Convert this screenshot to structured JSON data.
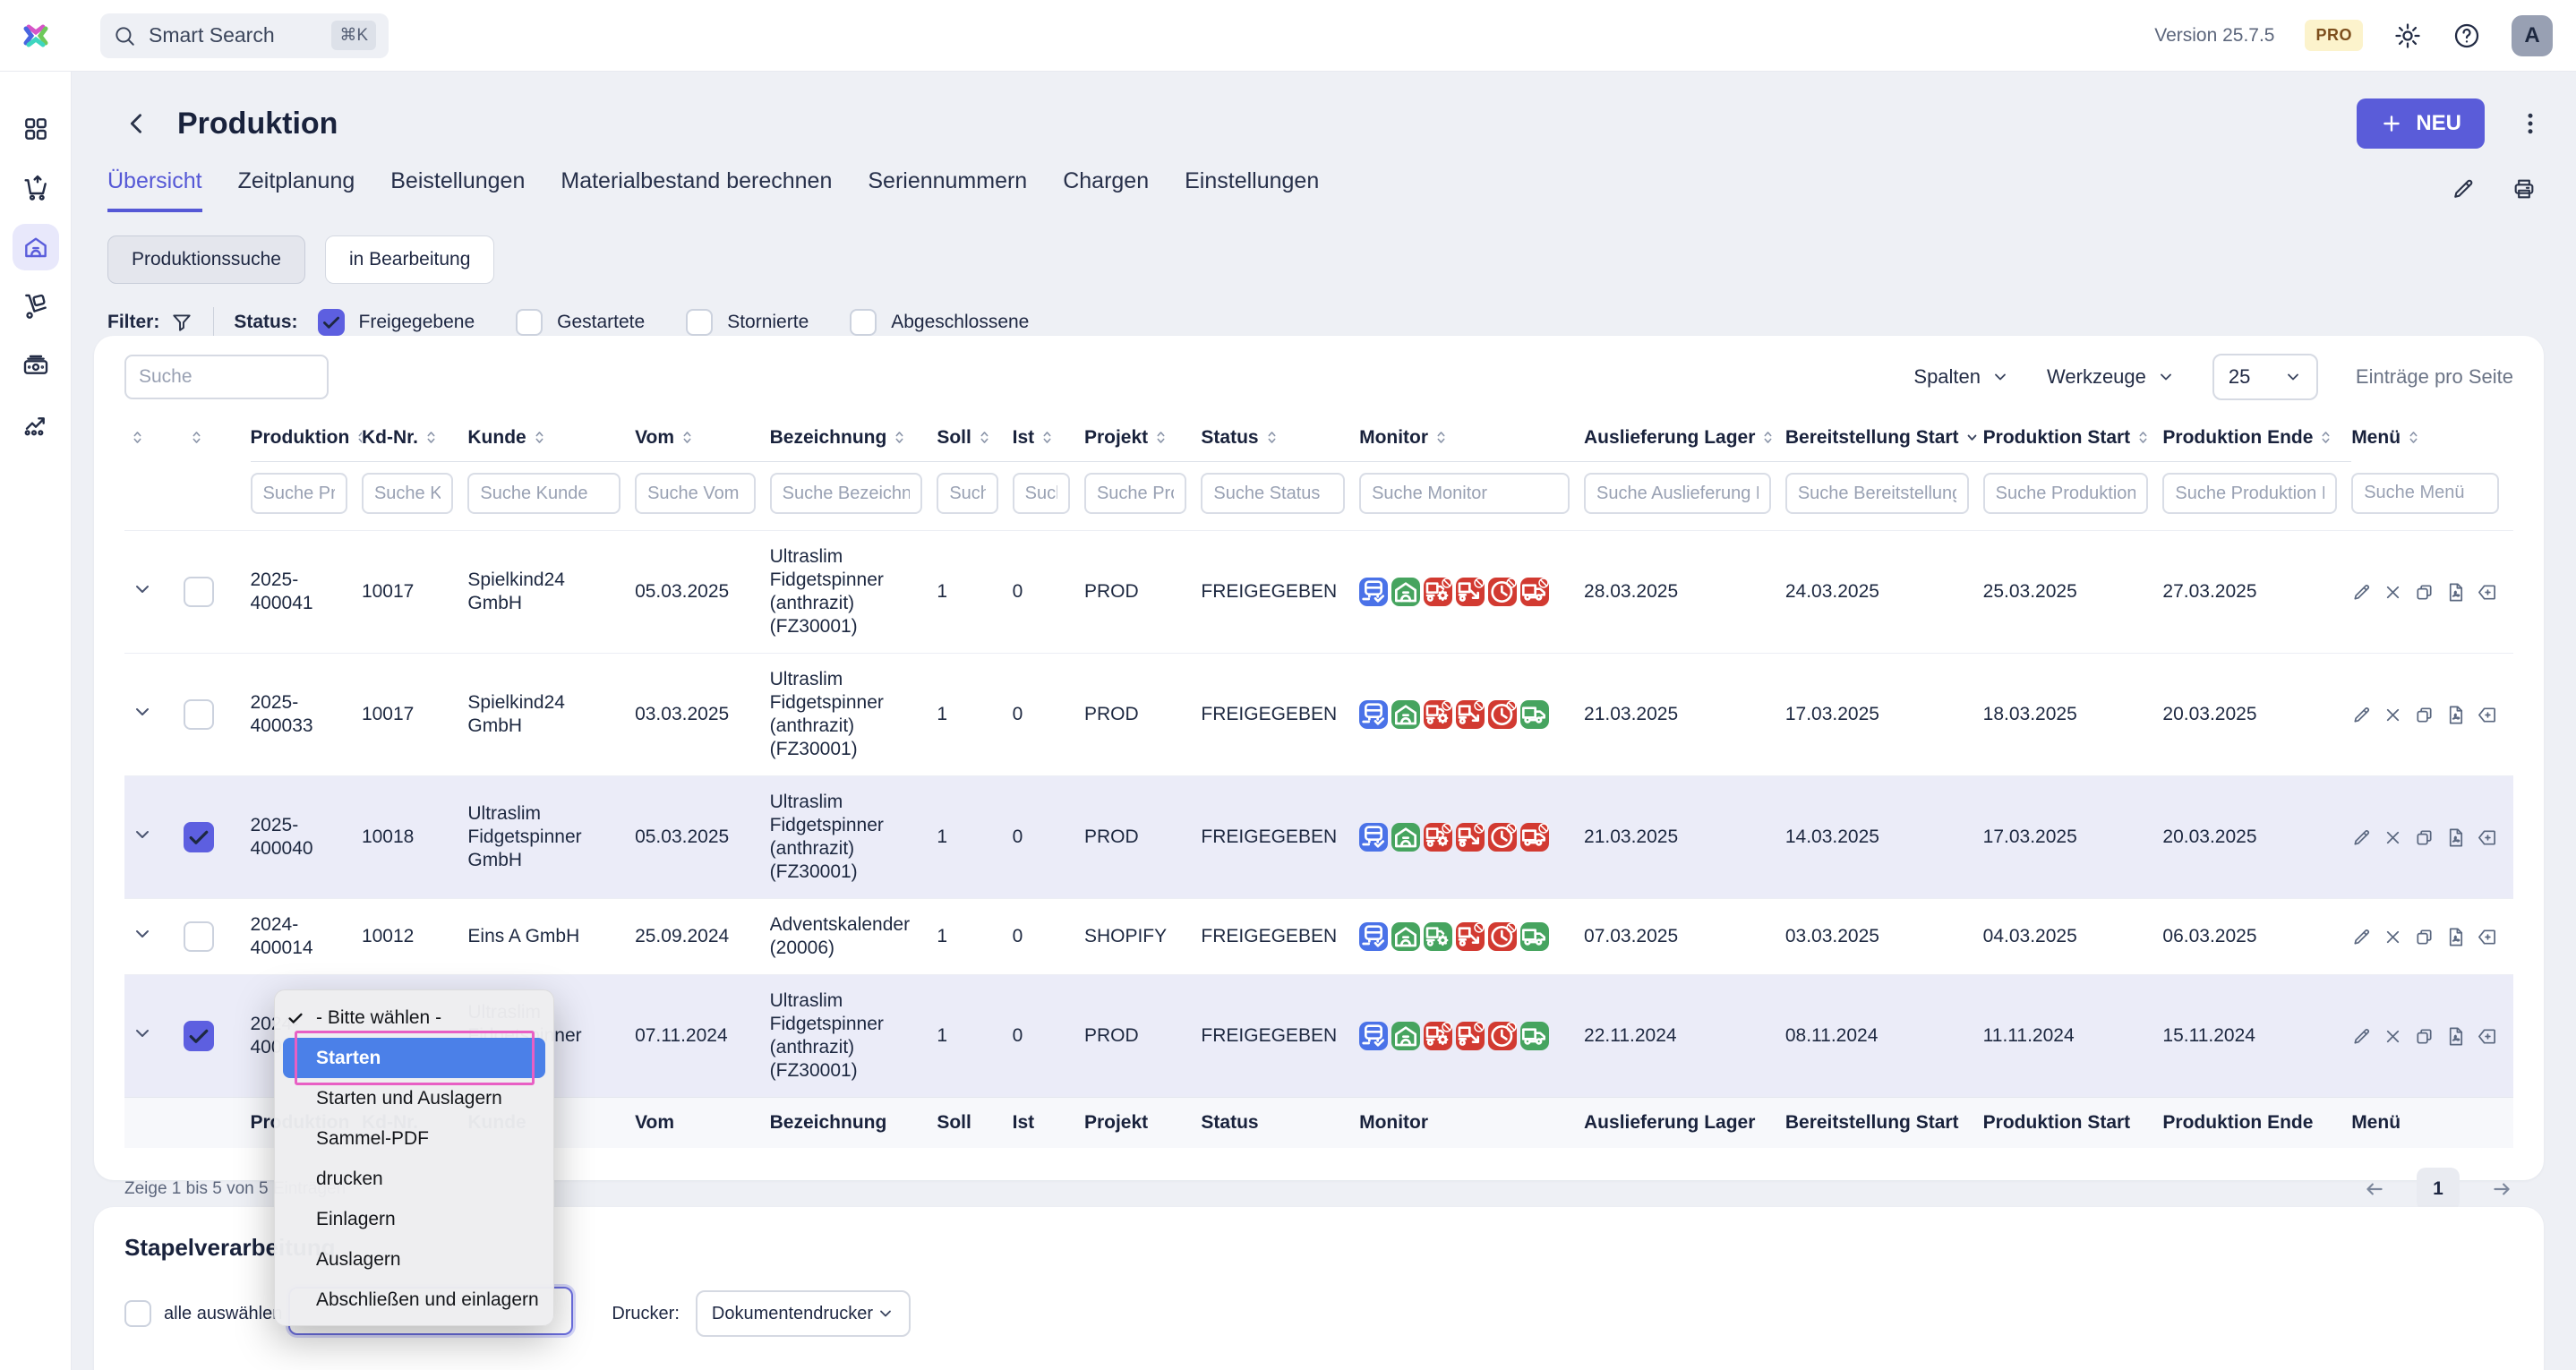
{
  "topbar": {
    "search_placeholder": "Smart Search",
    "search_shortcut": "⌘K",
    "version": "Version 25.7.5",
    "plan_badge": "PRO",
    "avatar_letter": "A"
  },
  "sidebar": {
    "items": [
      {
        "name": "dashboard",
        "icon": "dashboard",
        "active": false
      },
      {
        "name": "sales",
        "icon": "cart",
        "active": false
      },
      {
        "name": "production",
        "icon": "warehouse",
        "active": true
      },
      {
        "name": "logistics",
        "icon": "handtruck",
        "active": false
      },
      {
        "name": "finance",
        "icon": "cash",
        "active": false
      },
      {
        "name": "reports",
        "icon": "chart",
        "active": false
      }
    ]
  },
  "header": {
    "title": "Produktion",
    "new_button": "NEU"
  },
  "tabs": [
    {
      "label": "Übersicht",
      "active": true
    },
    {
      "label": "Zeitplanung",
      "active": false
    },
    {
      "label": "Beistellungen",
      "active": false
    },
    {
      "label": "Materialbestand berechnen",
      "active": false
    },
    {
      "label": "Seriennummern",
      "active": false
    },
    {
      "label": "Chargen",
      "active": false
    },
    {
      "label": "Einstellungen",
      "active": false
    }
  ],
  "view_pills": [
    {
      "label": "Produktionssuche",
      "active": true
    },
    {
      "label": "in Bearbeitung",
      "active": false
    }
  ],
  "filter": {
    "label": "Filter:",
    "status_label": "Status:",
    "options": [
      {
        "label": "Freigegebene",
        "checked": true
      },
      {
        "label": "Gestartete",
        "checked": false
      },
      {
        "label": "Stornierte",
        "checked": false
      },
      {
        "label": "Abgeschlossene",
        "checked": false
      }
    ]
  },
  "table": {
    "search_placeholder": "Suche",
    "columns_button": "Spalten",
    "tools_button": "Werkzeuge",
    "page_size": "25",
    "page_size_label": "Einträge pro Seite",
    "columns": [
      {
        "key": "expand",
        "label": "",
        "sort": "both",
        "filter": null
      },
      {
        "key": "select",
        "label": "",
        "sort": "both",
        "filter": null
      },
      {
        "key": "produktion",
        "label": "Produktion",
        "sort": "both",
        "filter": "Suche Produktion"
      },
      {
        "key": "kd_nr",
        "label": "Kd-Nr.",
        "sort": "both",
        "filter": "Suche Kd-Nr."
      },
      {
        "key": "kunde",
        "label": "Kunde",
        "sort": "both",
        "filter": "Suche Kunde"
      },
      {
        "key": "vom",
        "label": "Vom",
        "sort": "both",
        "filter": "Suche Vom"
      },
      {
        "key": "bezeichnung",
        "label": "Bezeichnung",
        "sort": "both",
        "filter": "Suche Bezeichnung"
      },
      {
        "key": "soll",
        "label": "Soll",
        "sort": "both",
        "filter": "Suche Soll"
      },
      {
        "key": "ist",
        "label": "Ist",
        "sort": "both",
        "filter": "Suche Ist"
      },
      {
        "key": "projekt",
        "label": "Projekt",
        "sort": "both",
        "filter": "Suche Projekt"
      },
      {
        "key": "status",
        "label": "Status",
        "sort": "both",
        "filter": "Suche Status"
      },
      {
        "key": "monitor",
        "label": "Monitor",
        "sort": "both",
        "filter": "Suche Monitor"
      },
      {
        "key": "auslieferung_lager",
        "label": "Auslieferung Lager",
        "sort": "both",
        "filter": "Suche Auslieferung Lager"
      },
      {
        "key": "bereitstellung_start",
        "label": "Bereitstellung Start",
        "sort": "desc",
        "filter": "Suche Bereitstellung Start"
      },
      {
        "key": "produktion_start",
        "label": "Produktion Start",
        "sort": "both",
        "filter": "Suche Produktion Start"
      },
      {
        "key": "produktion_ende",
        "label": "Produktion Ende",
        "sort": "both",
        "filter": "Suche Produktion Ende"
      },
      {
        "key": "menu",
        "label": "Menü",
        "sort": "both",
        "filter": "Suche Menü"
      }
    ],
    "row_actions": [
      "edit",
      "delete",
      "copy",
      "pdf",
      "tag-plus"
    ],
    "rows": [
      {
        "checked": false,
        "selected": false,
        "produktion": "2025-\n400041",
        "kd_nr": "10017",
        "kunde": "Spielkind24\nGmbH",
        "vom": "05.03.2025",
        "bezeichnung": "Ultraslim\nFidgetspinner\n(anthrazit)\n(FZ30001)",
        "soll": "1",
        "ist": "0",
        "projekt": "PROD",
        "status": "FREIGEGEBEN",
        "monitor": [
          [
            "truck-check",
            "blue"
          ],
          [
            "warehouse",
            "green"
          ],
          [
            "truck-gear",
            "red"
          ],
          [
            "truck-arrow",
            "red"
          ],
          [
            "clock",
            "red"
          ],
          [
            "truck",
            "red"
          ]
        ],
        "auslieferung_lager": "28.03.2025",
        "bereitstellung_start": "24.03.2025",
        "produktion_start": "25.03.2025",
        "produktion_ende": "27.03.2025"
      },
      {
        "checked": false,
        "selected": false,
        "produktion": "2025-\n400033",
        "kd_nr": "10017",
        "kunde": "Spielkind24\nGmbH",
        "vom": "03.03.2025",
        "bezeichnung": "Ultraslim\nFidgetspinner\n(anthrazit)\n(FZ30001)",
        "soll": "1",
        "ist": "0",
        "projekt": "PROD",
        "status": "FREIGEGEBEN",
        "monitor": [
          [
            "truck-check",
            "blue"
          ],
          [
            "warehouse",
            "green"
          ],
          [
            "truck-gear",
            "red"
          ],
          [
            "truck-arrow",
            "red"
          ],
          [
            "clock",
            "red"
          ],
          [
            "truck",
            "green"
          ]
        ],
        "auslieferung_lager": "21.03.2025",
        "bereitstellung_start": "17.03.2025",
        "produktion_start": "18.03.2025",
        "produktion_ende": "20.03.2025"
      },
      {
        "checked": true,
        "selected": true,
        "produktion": "2025-\n400040",
        "kd_nr": "10018",
        "kunde": "Ultraslim\nFidgetspinner\nGmbH",
        "vom": "05.03.2025",
        "bezeichnung": "Ultraslim\nFidgetspinner\n(anthrazit)\n(FZ30001)",
        "soll": "1",
        "ist": "0",
        "projekt": "PROD",
        "status": "FREIGEGEBEN",
        "monitor": [
          [
            "truck-check",
            "blue"
          ],
          [
            "warehouse",
            "green"
          ],
          [
            "truck-gear",
            "red"
          ],
          [
            "truck-arrow",
            "red"
          ],
          [
            "clock",
            "red"
          ],
          [
            "truck",
            "red"
          ]
        ],
        "auslieferung_lager": "21.03.2025",
        "bereitstellung_start": "14.03.2025",
        "produktion_start": "17.03.2025",
        "produktion_ende": "20.03.2025"
      },
      {
        "checked": false,
        "selected": false,
        "produktion": "2024-\n400014",
        "kd_nr": "10012",
        "kunde": "Eins A GmbH",
        "vom": "25.09.2024",
        "bezeichnung": "Adventskalender\n(20006)",
        "soll": "1",
        "ist": "0",
        "projekt": "SHOPIFY",
        "status": "FREIGEGEBEN",
        "monitor": [
          [
            "truck-check",
            "blue"
          ],
          [
            "warehouse",
            "green"
          ],
          [
            "truck-gear",
            "green"
          ],
          [
            "truck-arrow",
            "red"
          ],
          [
            "clock",
            "red"
          ],
          [
            "truck",
            "green"
          ]
        ],
        "auslieferung_lager": "07.03.2025",
        "bereitstellung_start": "03.03.2025",
        "produktion_start": "04.03.2025",
        "produktion_ende": "06.03.2025"
      },
      {
        "checked": true,
        "selected": true,
        "produktion": "2024-\n400",
        "kd_nr": "",
        "kunde": "Ultraslim\nFidgetspinner\nGmbH",
        "vom": "07.11.2024",
        "bezeichnung": "Ultraslim\nFidgetspinner\n(anthrazit)\n(FZ30001)",
        "soll": "1",
        "ist": "0",
        "projekt": "PROD",
        "status": "FREIGEGEBEN",
        "monitor": [
          [
            "truck-check",
            "blue"
          ],
          [
            "warehouse",
            "green"
          ],
          [
            "truck-gear",
            "red"
          ],
          [
            "truck-arrow",
            "red"
          ],
          [
            "clock",
            "red"
          ],
          [
            "truck",
            "green"
          ]
        ],
        "auslieferung_lager": "22.11.2024",
        "bereitstellung_start": "08.11.2024",
        "produktion_start": "11.11.2024",
        "produktion_ende": "15.11.2024"
      }
    ],
    "summary": "Zeige 1 bis 5 von 5 Einträgen",
    "page": "1"
  },
  "batch": {
    "title": "Stapelverarbeitung",
    "select_all_label": "alle auswählen",
    "printer_label": "Drucker:",
    "printer_value": "Dokumentendrucker"
  },
  "action_dropdown": {
    "items": [
      {
        "label": "- Bitte wählen -",
        "checked": true,
        "highlighted": false
      },
      {
        "label": "Starten",
        "checked": false,
        "highlighted": true
      },
      {
        "label": "Starten und Auslagern",
        "checked": false,
        "highlighted": false
      },
      {
        "label": "Sammel-PDF",
        "checked": false,
        "highlighted": false
      },
      {
        "label": "drucken",
        "checked": false,
        "highlighted": false
      },
      {
        "label": "Einlagern",
        "checked": false,
        "highlighted": false
      },
      {
        "label": "Auslagern",
        "checked": false,
        "highlighted": false
      },
      {
        "label": "Abschließen und einlagern",
        "checked": false,
        "highlighted": false
      }
    ]
  },
  "colors": {
    "accent": "#5558d6",
    "monitor_blue": "#4a72e8",
    "monitor_green": "#46a45f",
    "monitor_red": "#d23a31",
    "dropdown_highlight": "#4b80e8",
    "annotation_pink": "#e85fc4",
    "selected_row": "#ebecf8",
    "pro_badge_bg": "#fcf3cc",
    "pro_badge_text": "#7d4f1d"
  }
}
